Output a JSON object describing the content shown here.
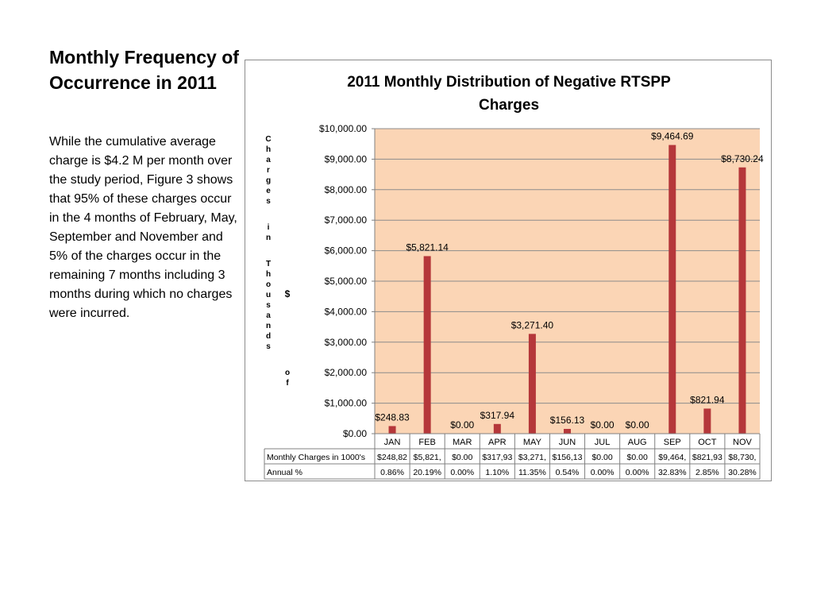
{
  "slide": {
    "title": "Monthly Frequency of Occurrence in 2011",
    "body": "While the cumulative average charge is $4.2 M per month over the study period, Figure 3 shows that 95% of these charges occur in the 4 months of February, May, September and November and 5% of the charges occur in the remaining 7 months including 3 months during which no charges were incurred."
  },
  "chart_data": {
    "type": "bar",
    "title": "2011 Monthly Distribution of Negative RTSPP Charges",
    "ylabel": "Charges in Thousands of $",
    "categories": [
      "JAN",
      "FEB",
      "MAR",
      "APR",
      "MAY",
      "JUN",
      "JUL",
      "AUG",
      "SEP",
      "OCT",
      "NOV"
    ],
    "series": [
      {
        "name": "Monthly Charges in 1000's",
        "values": [
          248.83,
          5821.14,
          0.0,
          317.94,
          3271.4,
          156.13,
          0.0,
          0.0,
          9464.69,
          821.94,
          8730.24
        ]
      }
    ],
    "data_labels": [
      "$248.83",
      "$5,821.14",
      "$0.00",
      "$317.94",
      "$3,271.40",
      "$156.13",
      "$0.00",
      "$0.00",
      "$9,464.69",
      "$821.94",
      "$8,730.24"
    ],
    "yticks": [
      0,
      1000,
      2000,
      3000,
      4000,
      5000,
      6000,
      7000,
      8000,
      9000,
      10000
    ],
    "ytick_labels": [
      "$0.00",
      "$1,000.00",
      "$2,000.00",
      "$3,000.00",
      "$4,000.00",
      "$5,000.00",
      "$6,000.00",
      "$7,000.00",
      "$8,000.00",
      "$9,000.00",
      "$10,000.00"
    ],
    "ylim": [
      0,
      10000
    ],
    "grid": true,
    "colors": {
      "bar": "#b5373a",
      "plot_bg": "#fbd5b5",
      "grid": "#8c8c8c"
    },
    "data_table": {
      "rows": [
        {
          "label": "Monthly Charges in 1000's",
          "cells": [
            "$248,82",
            "$5,821,",
            "$0.00",
            "$317,93",
            "$3,271,",
            "$156,13",
            "$0.00",
            "$0.00",
            "$9,464,",
            "$821,93",
            "$8,730,"
          ]
        },
        {
          "label": "Annual %",
          "cells": [
            "0.86%",
            "20.19%",
            "0.00%",
            "1.10%",
            "11.35%",
            "0.54%",
            "0.00%",
            "0.00%",
            "32.83%",
            "2.85%",
            "30.28%"
          ]
        }
      ]
    }
  }
}
